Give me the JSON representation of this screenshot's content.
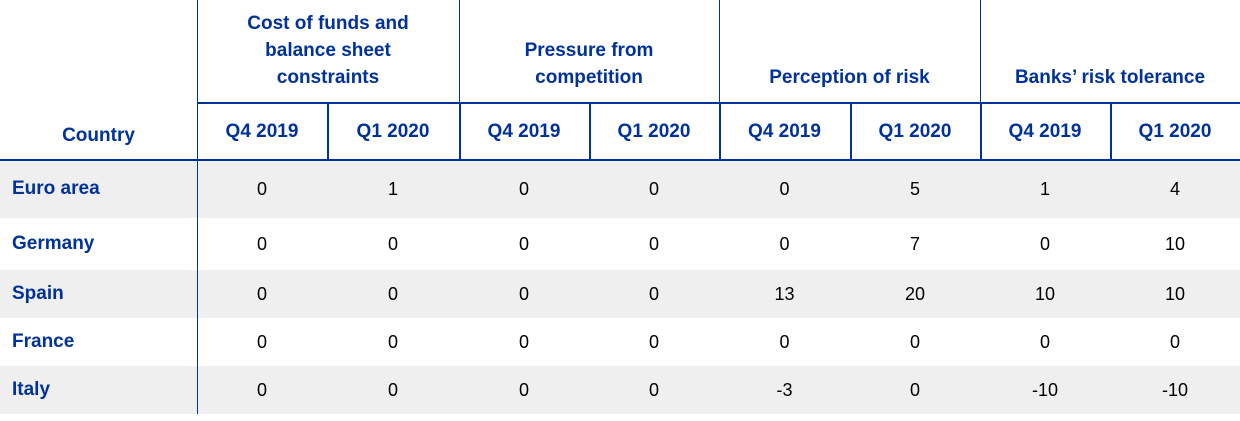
{
  "table": {
    "country_header": "Country",
    "groups": [
      "Cost of funds and balance sheet constraints",
      "Pressure from competition",
      "Perception of risk",
      "Banks’ risk tolerance"
    ],
    "subheaders": [
      "Q4 2019",
      "Q1 2020",
      "Q4 2019",
      "Q1 2020",
      "Q4 2019",
      "Q1 2020",
      "Q4 2019",
      "Q1 2020"
    ],
    "rows": [
      {
        "country": "Euro area",
        "values": [
          0,
          1,
          0,
          0,
          0,
          5,
          1,
          4
        ]
      },
      {
        "country": "Germany",
        "values": [
          0,
          0,
          0,
          0,
          0,
          7,
          0,
          10
        ]
      },
      {
        "country": "Spain",
        "values": [
          0,
          0,
          0,
          0,
          13,
          20,
          10,
          10
        ]
      },
      {
        "country": "France",
        "values": [
          0,
          0,
          0,
          0,
          0,
          0,
          0,
          0
        ]
      },
      {
        "country": "Italy",
        "values": [
          0,
          0,
          0,
          0,
          -3,
          0,
          -10,
          -10
        ]
      }
    ]
  }
}
